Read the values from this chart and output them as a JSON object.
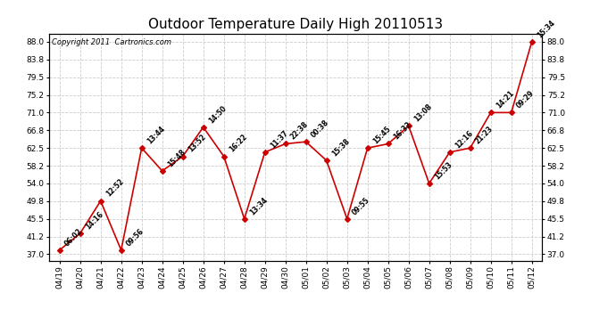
{
  "title": "Outdoor Temperature Daily High 20110513",
  "copyright": "Copyright 2011  Cartronics.com",
  "dates": [
    "04/19",
    "04/20",
    "04/21",
    "04/22",
    "04/23",
    "04/24",
    "04/25",
    "04/26",
    "04/27",
    "04/28",
    "04/29",
    "04/30",
    "05/01",
    "05/02",
    "05/03",
    "05/04",
    "05/05",
    "05/06",
    "05/07",
    "05/08",
    "05/09",
    "05/10",
    "05/11",
    "05/12"
  ],
  "temperatures": [
    38.0,
    42.0,
    49.8,
    38.0,
    62.5,
    57.0,
    60.5,
    67.5,
    60.5,
    45.5,
    61.5,
    63.5,
    64.0,
    59.5,
    45.5,
    62.5,
    63.5,
    67.8,
    54.0,
    61.5,
    62.5,
    71.0,
    71.0,
    88.0
  ],
  "times": [
    "06:02",
    "14:16",
    "12:52",
    "09:56",
    "13:44",
    "15:48",
    "13:52",
    "14:50",
    "16:22",
    "13:34",
    "11:37",
    "22:38",
    "00:38",
    "15:38",
    "09:55",
    "15:45",
    "16:32",
    "13:08",
    "15:53",
    "12:16",
    "21:23",
    "14:21",
    "09:29",
    "15:34"
  ],
  "line_color": "#cc0000",
  "grid_color": "#cccccc",
  "bg_color": "#ffffff",
  "yticks": [
    37.0,
    41.2,
    45.5,
    49.8,
    54.0,
    58.2,
    62.5,
    66.8,
    71.0,
    75.2,
    79.5,
    83.8,
    88.0
  ],
  "ylim": [
    35.5,
    90.0
  ],
  "title_fontsize": 11,
  "label_fontsize": 5.5,
  "copyright_fontsize": 6,
  "tick_fontsize": 6.5,
  "marker_size": 3
}
